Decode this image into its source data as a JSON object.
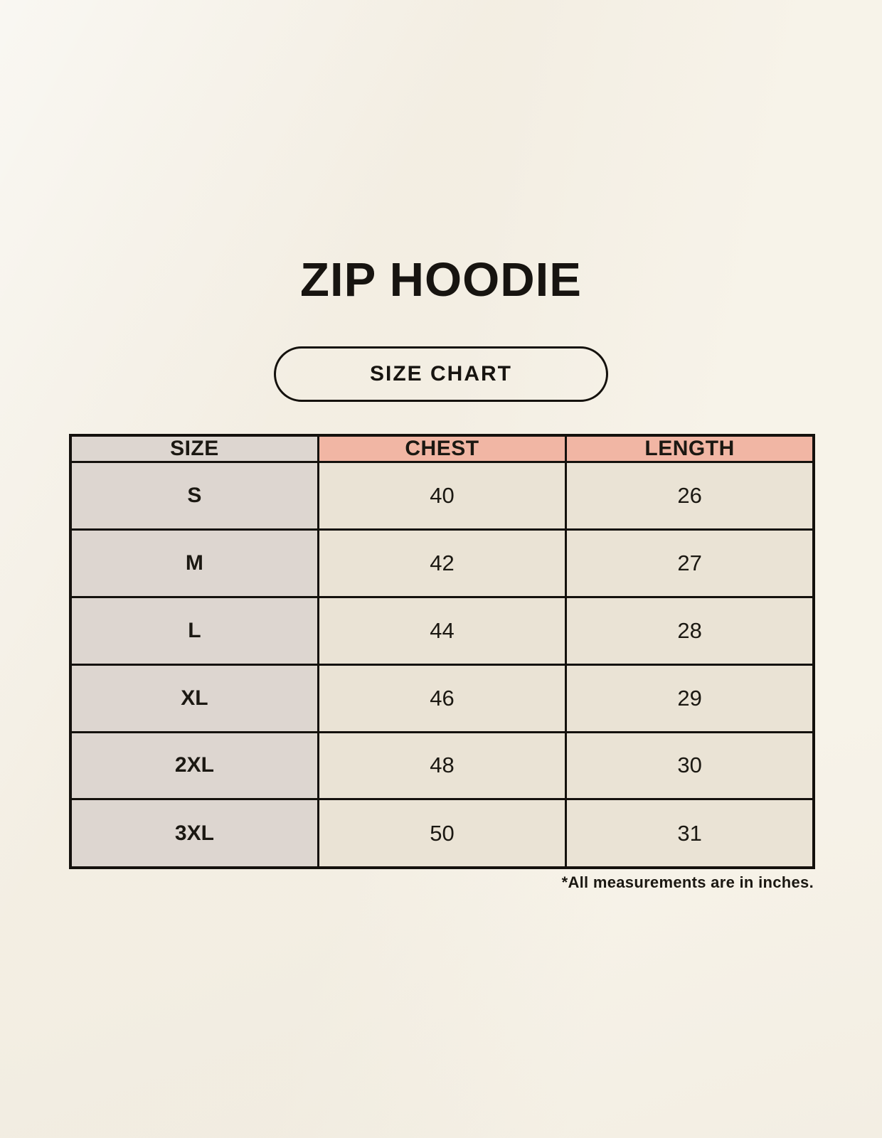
{
  "page": {
    "title": "ZIP HOODIE",
    "badge_label": "SIZE CHART",
    "footnote": "*All measurements are in inches."
  },
  "colors": {
    "background": "#f7f3e9",
    "size_column_bg": "#ddd6d0",
    "accent_header_bg": "#f1b6a4",
    "value_cell_bg": "#eae3d5",
    "border": "#14110d",
    "text": "#1b1812"
  },
  "table": {
    "headers": [
      "SIZE",
      "CHEST",
      "LENGTH"
    ],
    "rows": [
      [
        "S",
        "40",
        "26"
      ],
      [
        "M",
        "42",
        "27"
      ],
      [
        "L",
        "44",
        "28"
      ],
      [
        "XL",
        "46",
        "29"
      ],
      [
        "2XL",
        "48",
        "30"
      ],
      [
        "3XL",
        "50",
        "31"
      ]
    ]
  },
  "chart_data": {
    "type": "table",
    "title": "ZIP HOODIE",
    "columns": [
      "SIZE",
      "CHEST",
      "LENGTH"
    ],
    "rows": [
      {
        "size": "S",
        "chest": 40,
        "length": 26
      },
      {
        "size": "M",
        "chest": 42,
        "length": 27
      },
      {
        "size": "L",
        "chest": 44,
        "length": 28
      },
      {
        "size": "XL",
        "chest": 46,
        "length": 29
      },
      {
        "size": "2XL",
        "chest": 48,
        "length": 30
      },
      {
        "size": "3XL",
        "chest": 50,
        "length": 31
      }
    ],
    "annotations": [
      "*All measurements are in inches."
    ],
    "units": "inches"
  }
}
